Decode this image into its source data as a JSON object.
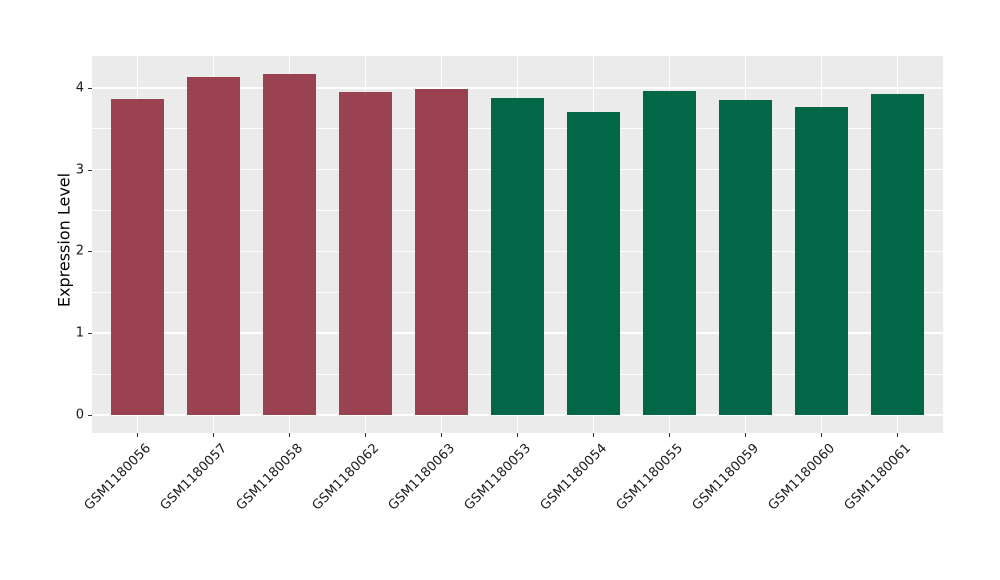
{
  "chart_data": {
    "type": "bar",
    "title": "",
    "xlabel": "",
    "ylabel": "Expression Level",
    "categories": [
      "GSM1180056",
      "GSM1180057",
      "GSM1180058",
      "GSM1180062",
      "GSM1180063",
      "GSM1180053",
      "GSM1180054",
      "GSM1180055",
      "GSM1180059",
      "GSM1180060",
      "GSM1180061"
    ],
    "values": [
      3.86,
      4.13,
      4.17,
      3.95,
      3.98,
      3.87,
      3.7,
      3.96,
      3.85,
      3.77,
      3.93
    ],
    "bar_colors": [
      "#9B4252",
      "#9B4252",
      "#9B4252",
      "#9B4252",
      "#9B4252",
      "#016747",
      "#016747",
      "#016747",
      "#016747",
      "#016747",
      "#016747"
    ],
    "yticks": [
      0,
      1,
      2,
      3,
      4
    ],
    "minor_yticks": [
      0.5,
      1.5,
      2.5,
      3.5
    ],
    "ylim": [
      -0.22,
      4.39
    ],
    "grid": true,
    "legend": "none",
    "colors": {
      "figure_bg": "#FFFFFF",
      "panel_bg": "#EBEBEB",
      "grid": "#FFFFFF",
      "group_red": "#9B4252",
      "group_green": "#016747",
      "axis_text": "#1A1A1A",
      "tick_mark": "#333333",
      "axis_title": "#000000"
    }
  }
}
